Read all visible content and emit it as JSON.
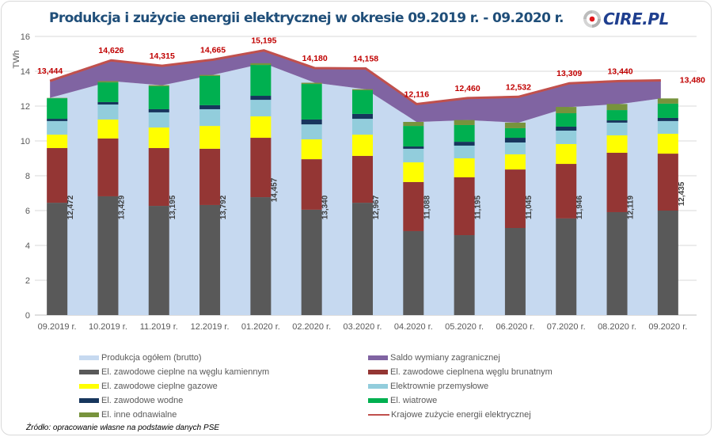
{
  "header": {
    "title": "Produkcja i zużycie energii elektrycznej w okresie 09.2019 r. - 09.2020 r.",
    "logo_text": "CIRE.PL"
  },
  "source_note": "Źródło: opracowanie własne na podstawie danych PSE",
  "chart_data": {
    "type": "bar",
    "stacked": true,
    "title": "Produkcja i zużycie energii elektrycznej w okresie 09.2019 r. - 09.2020 r.",
    "xlabel": "",
    "ylabel": "TWh",
    "ylim": [
      0,
      16
    ],
    "yticks": [
      0,
      2,
      4,
      6,
      8,
      10,
      12,
      14,
      16
    ],
    "grid": true,
    "legend_position": "bottom",
    "categories": [
      "09.2019 r.",
      "10.2019 r.",
      "11.2019 r.",
      "12.2019 r.",
      "01.2020 r.",
      "02.2020 r.",
      "03.2020 r.",
      "04.2020 r.",
      "05.2020 r.",
      "06.2020 r.",
      "07.2020 r.",
      "08.2020 r.",
      "09.2020 r."
    ],
    "area_series": [
      {
        "name": "Produkcja ogółem (brutto)",
        "color": "#c6d9f0",
        "values": [
          12.472,
          13.429,
          13.195,
          13.792,
          14.457,
          13.34,
          12.967,
          11.088,
          11.195,
          11.045,
          11.946,
          12.119,
          12.435
        ],
        "labels": [
          "12,472",
          "13,429",
          "13,195",
          "13,792",
          "14,457",
          "13,340",
          "12,967",
          "11,088",
          "11,195",
          "11,045",
          "11,946",
          "12,119",
          "12,435"
        ]
      },
      {
        "name": "Saldo wymiany zagranicznej",
        "color": "#8064a2",
        "values": [
          0.972,
          1.197,
          1.12,
          0.873,
          0.738,
          0.84,
          1.191,
          1.028,
          1.265,
          1.487,
          1.363,
          1.321,
          1.045
        ]
      }
    ],
    "series": [
      {
        "name": "El. zawodowe cieplne na węglu kamiennym",
        "color": "#595959",
        "values": [
          6.45,
          6.82,
          6.27,
          6.32,
          6.77,
          6.05,
          6.45,
          4.82,
          4.59,
          5.0,
          5.55,
          5.91,
          6.0
        ]
      },
      {
        "name": "El. zawodowe cieplnena węglu brunatnym",
        "color": "#943634",
        "values": [
          3.14,
          3.32,
          3.32,
          3.23,
          3.41,
          2.9,
          2.69,
          2.82,
          3.32,
          3.36,
          3.13,
          3.41,
          3.27
        ]
      },
      {
        "name": "El. zawodowe cieplne gazowe",
        "color": "#ffff00",
        "values": [
          0.77,
          1.09,
          1.18,
          1.31,
          1.23,
          1.14,
          1.22,
          1.13,
          1.09,
          0.87,
          1.14,
          1.0,
          1.14
        ]
      },
      {
        "name": "Elektrownie przemysłowe",
        "color": "#92cddc",
        "values": [
          0.78,
          0.86,
          0.87,
          0.96,
          0.95,
          0.86,
          0.91,
          0.78,
          0.73,
          0.68,
          0.77,
          0.73,
          0.73
        ]
      },
      {
        "name": "El. zawodowe wodne",
        "color": "#17365d",
        "values": [
          0.13,
          0.14,
          0.18,
          0.23,
          0.23,
          0.28,
          0.28,
          0.13,
          0.22,
          0.27,
          0.23,
          0.13,
          0.18
        ]
      },
      {
        "name": "El. wiatrowe",
        "color": "#00b050",
        "values": [
          1.18,
          1.13,
          1.32,
          1.68,
          1.77,
          2.04,
          1.36,
          1.18,
          0.96,
          0.55,
          0.77,
          0.59,
          0.82
        ]
      },
      {
        "name": "El. inne odnawialne",
        "color": "#77933c",
        "values": [
          0.02,
          0.07,
          0.06,
          0.06,
          0.1,
          0.07,
          0.06,
          0.23,
          0.29,
          0.32,
          0.36,
          0.35,
          0.3
        ]
      }
    ],
    "line_series": {
      "name": "Krajowe zużycie energii elektrycznej",
      "color": "#c0504d",
      "values": [
        13.444,
        14.626,
        14.315,
        14.665,
        15.195,
        14.18,
        14.158,
        12.116,
        12.46,
        12.532,
        13.309,
        13.44,
        13.48
      ],
      "labels": [
        "13,444",
        "14,626",
        "14,315",
        "14,665",
        "15,195",
        "14,180",
        "14,158",
        "12,116",
        "12,460",
        "12,532",
        "13,309",
        "13,440",
        "13,480"
      ],
      "label_color": "#c00000"
    }
  },
  "legend": {
    "items": [
      {
        "label": "Produkcja ogółem (brutto)",
        "color": "#c6d9f0",
        "kind": "box"
      },
      {
        "label": "Saldo wymiany zagranicznej",
        "color": "#8064a2",
        "kind": "box"
      },
      {
        "label": "El. zawodowe cieplne na węglu kamiennym",
        "color": "#595959",
        "kind": "box"
      },
      {
        "label": "El. zawodowe cieplnena węglu brunatnym",
        "color": "#943634",
        "kind": "box"
      },
      {
        "label": "El. zawodowe cieplne gazowe",
        "color": "#ffff00",
        "kind": "box"
      },
      {
        "label": "Elektrownie przemysłowe",
        "color": "#92cddc",
        "kind": "box"
      },
      {
        "label": "El. zawodowe wodne",
        "color": "#17365d",
        "kind": "box"
      },
      {
        "label": "El. wiatrowe",
        "color": "#00b050",
        "kind": "box"
      },
      {
        "label": "El. inne odnawialne",
        "color": "#77933c",
        "kind": "box"
      },
      {
        "label": "Krajowe zużycie energii elektrycznej",
        "color": "#c0504d",
        "kind": "line"
      }
    ]
  }
}
